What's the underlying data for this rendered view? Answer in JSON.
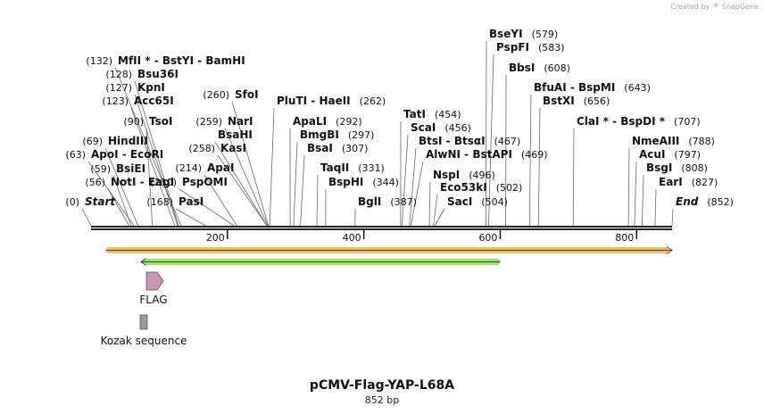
{
  "credit": {
    "prefix": "Created by",
    "brand": "SnapGene"
  },
  "map": {
    "name": "pCMV-Flag-YAP-L68A",
    "length_label": "852 bp",
    "total_bp": 852,
    "ruler_ticks": [
      {
        "pos": 200,
        "label": "200"
      },
      {
        "pos": 400,
        "label": "400"
      },
      {
        "pos": 600,
        "label": "600"
      },
      {
        "pos": 800,
        "label": "800"
      }
    ],
    "colors": {
      "orf": "#f0b04a",
      "orf_line": "#5a4410",
      "arrow": "#99d96a",
      "arrow_line": "#1c5a10",
      "flag": "#c996b4",
      "kozak": "#9a9a9a"
    },
    "features": [
      {
        "name": "FLAG",
        "start": 83,
        "end": 106,
        "type": "flag"
      },
      {
        "name": "Kozak sequence",
        "start": 74,
        "end": 80,
        "type": "kozak"
      }
    ],
    "orf": {
      "start": 22,
      "end": 852,
      "direction": "forward"
    },
    "arrow": {
      "start": 73,
      "end": 600,
      "direction": "reverse"
    },
    "sites": [
      {
        "name": "Start",
        "pos": 0,
        "label": "(0)",
        "special": "start"
      },
      {
        "name": "NotI - EagI",
        "pos": 56,
        "label": "(56)",
        "star": false
      },
      {
        "name": "BsiEI",
        "pos": 59,
        "label": "(59)"
      },
      {
        "name": "ApoI - EcoRI",
        "pos": 63,
        "label": "(63)"
      },
      {
        "name": "HindIII",
        "pos": 69,
        "label": "(69)"
      },
      {
        "name": "TsoI",
        "pos": 90,
        "label": "(90)"
      },
      {
        "name": "Acc65I",
        "pos": 123,
        "label": "(123)"
      },
      {
        "name": "KpnI",
        "pos": 127,
        "label": "(127)"
      },
      {
        "name": "Bsu36I",
        "pos": 128,
        "label": "(128)"
      },
      {
        "name": "MfII * - BstYI - BamHI",
        "pos": 132,
        "label": "(132)"
      },
      {
        "name": "PasI",
        "pos": 168,
        "label": "(168)"
      },
      {
        "name": "PspOMI",
        "pos": 210,
        "label": "(210)"
      },
      {
        "name": "ApaI",
        "pos": 214,
        "label": "(214)"
      },
      {
        "name": "KasI",
        "pos": 258,
        "label": "(258)"
      },
      {
        "name": "BsaHI",
        "pos": 258,
        "label": ""
      },
      {
        "name": "NarI",
        "pos": 259,
        "label": "(259)"
      },
      {
        "name": "SfoI",
        "pos": 260,
        "label": "(260)"
      },
      {
        "name": "PluTI - HaeII",
        "pos": 262,
        "label": "(262)"
      },
      {
        "name": "ApaLI",
        "pos": 292,
        "label": "(292)"
      },
      {
        "name": "BmgBI",
        "pos": 297,
        "label": "(297)"
      },
      {
        "name": "BsaI",
        "pos": 307,
        "label": "(307)"
      },
      {
        "name": "TaqII",
        "pos": 331,
        "label": "(331)"
      },
      {
        "name": "BspHI",
        "pos": 344,
        "label": "(344)"
      },
      {
        "name": "BglI",
        "pos": 387,
        "label": "(387)"
      },
      {
        "name": "TatI",
        "pos": 454,
        "label": "(454)"
      },
      {
        "name": "ScaI",
        "pos": 456,
        "label": "(456)"
      },
      {
        "name": "BtsI - BtsαI",
        "pos": 467,
        "label": "(467)"
      },
      {
        "name": "AlwNI - BstAPI",
        "pos": 469,
        "label": "(469)"
      },
      {
        "name": "NspI",
        "pos": 496,
        "label": "(496)"
      },
      {
        "name": "Eco53kI",
        "pos": 502,
        "label": "(502)"
      },
      {
        "name": "SacI",
        "pos": 504,
        "label": "(504)"
      },
      {
        "name": "BseYI",
        "pos": 579,
        "label": "(579)"
      },
      {
        "name": "PspFI",
        "pos": 583,
        "label": "(583)"
      },
      {
        "name": "BbsI",
        "pos": 608,
        "label": "(608)"
      },
      {
        "name": "BfuAI - BspMI",
        "pos": 643,
        "label": "(643)"
      },
      {
        "name": "BstXI",
        "pos": 656,
        "label": "(656)"
      },
      {
        "name": "ClaI * - BspDI *",
        "pos": 707,
        "label": "(707)"
      },
      {
        "name": "NmeAIII",
        "pos": 788,
        "label": "(788)"
      },
      {
        "name": "AcuI",
        "pos": 797,
        "label": "(797)"
      },
      {
        "name": "BsgI",
        "pos": 808,
        "label": "(808)"
      },
      {
        "name": "EarI",
        "pos": 827,
        "label": "(827)"
      },
      {
        "name": "End",
        "pos": 852,
        "label": "(852)",
        "special": "end"
      }
    ]
  }
}
